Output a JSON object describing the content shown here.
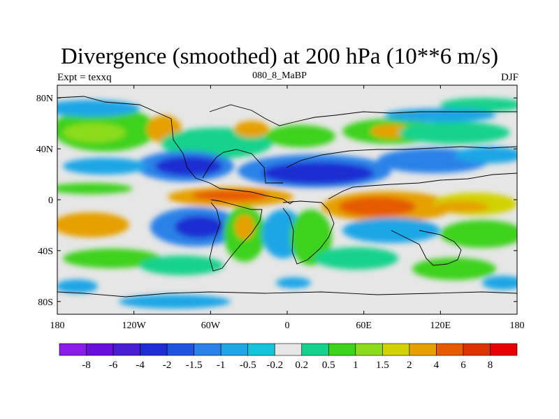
{
  "map": {
    "title": "Divergence (smoothed) at 200 hPa (10**6 m/s)",
    "subtitle_left": "Expt = texxq",
    "subtitle_center": "080_8_MaBP",
    "subtitle_right": "DJF",
    "lon_ticks": [
      "180",
      "120W",
      "60W",
      "0",
      "60E",
      "120E",
      "180"
    ],
    "lat_ticks": [
      "80N",
      "40N",
      "0",
      "40S",
      "80S"
    ]
  },
  "colorbar": {
    "labels": [
      "-8",
      "-6",
      "-4",
      "-2",
      "-1.5",
      "-1",
      "-0.5",
      "-0.2",
      "0.2",
      "0.5",
      "1",
      "1.5",
      "2",
      "4",
      "6",
      "8"
    ],
    "colors": [
      "#8a1ee6",
      "#6a10dc",
      "#4a1ed2",
      "#1e2ed2",
      "#1e55e0",
      "#2a82e8",
      "#1ea6e6",
      "#14c2dc",
      "#e6e6e6",
      "#14d28c",
      "#3cd21e",
      "#8cdc1e",
      "#d2d200",
      "#e6a000",
      "#e65a00",
      "#dc3200",
      "#e60000"
    ]
  }
}
